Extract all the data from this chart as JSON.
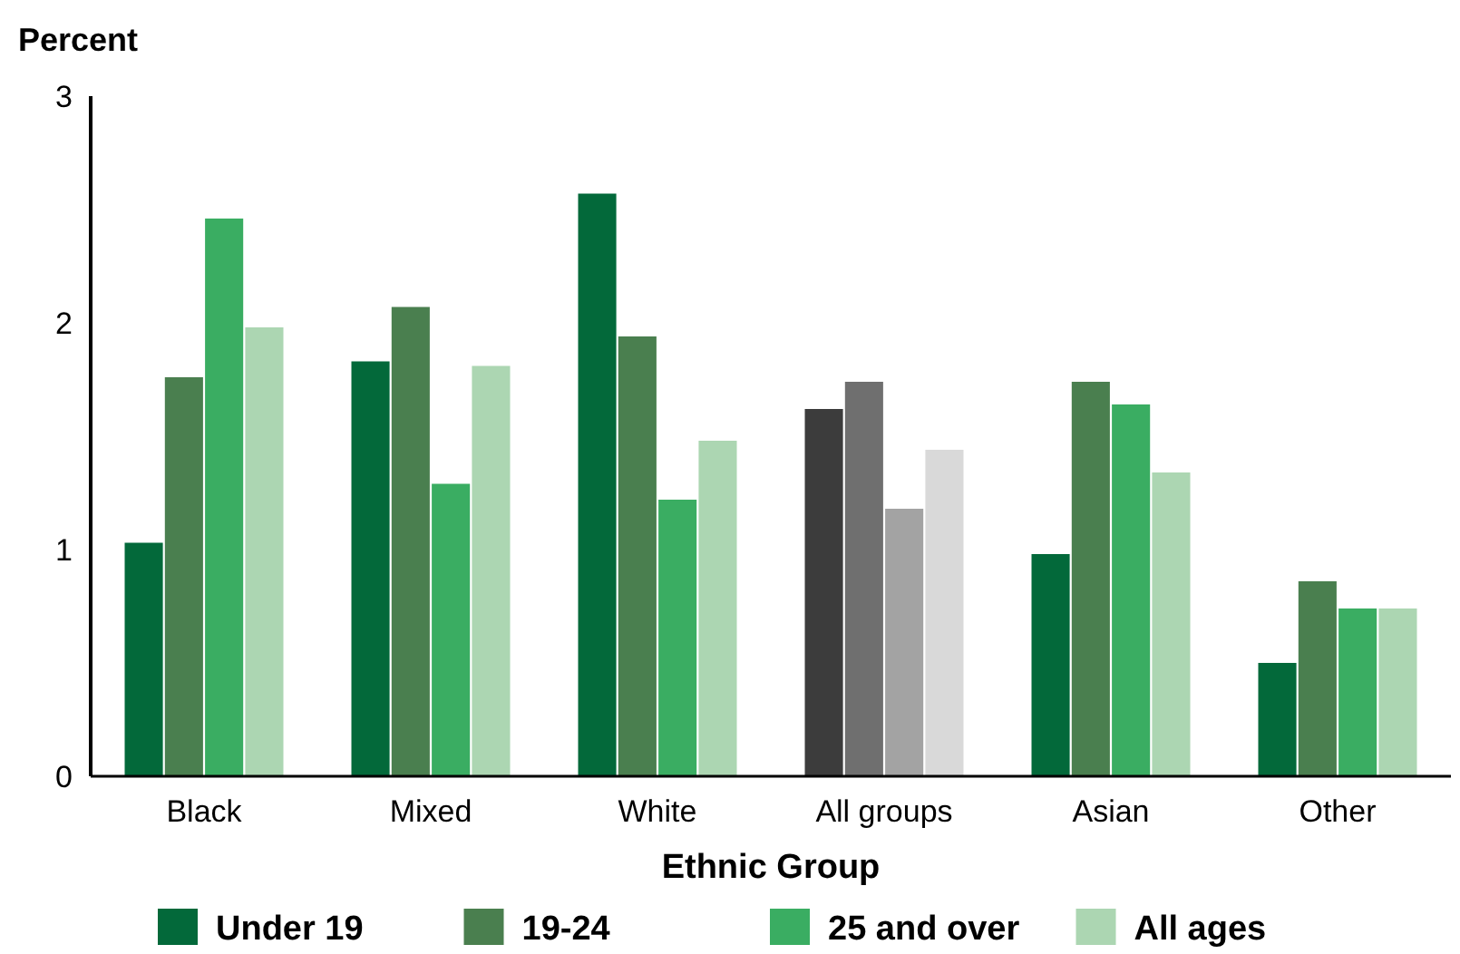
{
  "chart_data": {
    "type": "bar",
    "ylabel": "Percent",
    "xlabel": "Ethnic Group",
    "categories": [
      "Black",
      "Mixed",
      "White",
      "All groups",
      "Asian",
      "Other"
    ],
    "series": [
      {
        "name": "Under 19",
        "color": "#03693a",
        "colors": [
          "#03693a",
          "#03693a",
          "#03693a",
          "#3c3c3c",
          "#03693a",
          "#03693a"
        ],
        "values": [
          1.03,
          1.83,
          2.57,
          1.62,
          0.98,
          0.5
        ]
      },
      {
        "name": "19-24",
        "color": "#4a7f4f",
        "colors": [
          "#4a7f4f",
          "#4a7f4f",
          "#4a7f4f",
          "#6f6f6f",
          "#4a7f4f",
          "#4a7f4f"
        ],
        "values": [
          1.76,
          2.07,
          1.94,
          1.74,
          1.74,
          0.86
        ]
      },
      {
        "name": "25 and over",
        "color": "#3aad62",
        "colors": [
          "#3aad62",
          "#3aad62",
          "#3aad62",
          "#a3a3a3",
          "#3aad62",
          "#3aad62"
        ],
        "values": [
          2.46,
          1.29,
          1.22,
          1.18,
          1.64,
          0.74
        ]
      },
      {
        "name": "All ages",
        "color": "#acd6b2",
        "colors": [
          "#acd6b2",
          "#acd6b2",
          "#acd6b2",
          "#d9d9d9",
          "#acd6b2",
          "#acd6b2"
        ],
        "values": [
          1.98,
          1.81,
          1.48,
          1.44,
          1.34,
          0.74
        ]
      }
    ],
    "ylim": [
      0,
      3
    ],
    "yticks": [
      0,
      1,
      2,
      3
    ],
    "grid": false,
    "legend": "bottom"
  }
}
